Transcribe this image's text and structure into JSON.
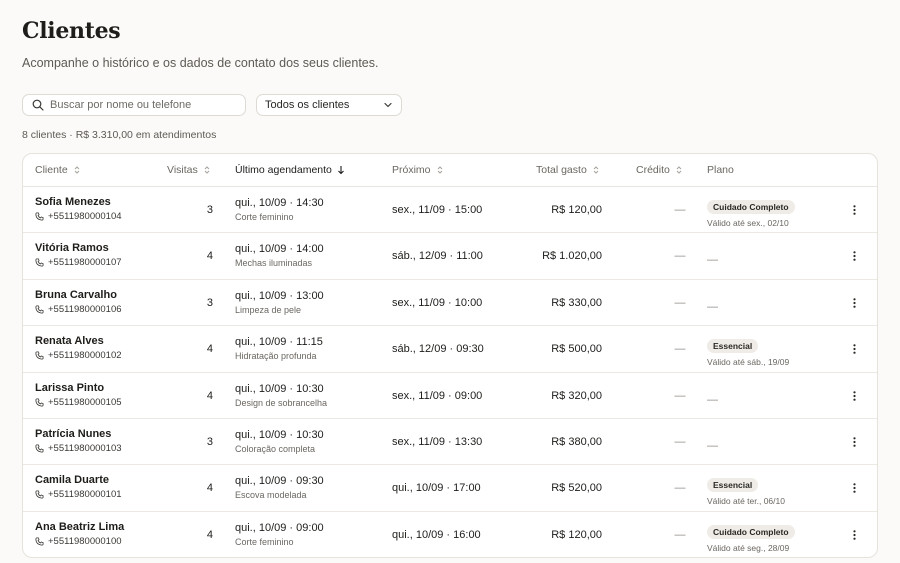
{
  "header": {
    "title": "Clientes",
    "subtitle": "Acompanhe o histórico e os dados de contato dos seus clientes."
  },
  "search": {
    "placeholder": "Buscar por nome ou telefone",
    "value": ""
  },
  "filter": {
    "selected": "Todos os clientes"
  },
  "summary": "8 clientes · R$ 3.310,00 em atendimentos",
  "columns": {
    "client": "Cliente",
    "visits": "Visitas",
    "last": "Último agendamento",
    "next": "Próximo",
    "total": "Total gasto",
    "credit": "Crédito",
    "plan": "Plano"
  },
  "rows": [
    {
      "name": "Sofia Menezes",
      "phone": "+5511980000104",
      "visits": "3",
      "last": "qui., 10/09 · 14:30",
      "service": "Corte feminino",
      "next": "sex., 11/09 · 15:00",
      "total": "R$ 120,00",
      "credit": "—",
      "plan": "Cuidado Completo",
      "valid": "Válido até sex., 02/10"
    },
    {
      "name": "Vitória Ramos",
      "phone": "+5511980000107",
      "visits": "4",
      "last": "qui., 10/09 · 14:00",
      "service": "Mechas iluminadas",
      "next": "sáb., 12/09 · 11:00",
      "total": "R$ 1.020,00",
      "credit": "—",
      "plan": "",
      "valid": "",
      "plan_empty": "—"
    },
    {
      "name": "Bruna Carvalho",
      "phone": "+5511980000106",
      "visits": "3",
      "last": "qui., 10/09 · 13:00",
      "service": "Limpeza de pele",
      "next": "sex., 11/09 · 10:00",
      "total": "R$ 330,00",
      "credit": "—",
      "plan": "",
      "valid": "",
      "plan_empty": "—"
    },
    {
      "name": "Renata Alves",
      "phone": "+5511980000102",
      "visits": "4",
      "last": "qui., 10/09 · 11:15",
      "service": "Hidratação profunda",
      "next": "sáb., 12/09 · 09:30",
      "total": "R$ 500,00",
      "credit": "—",
      "plan": "Essencial",
      "valid": "Válido até sáb., 19/09"
    },
    {
      "name": "Larissa Pinto",
      "phone": "+5511980000105",
      "visits": "4",
      "last": "qui., 10/09 · 10:30",
      "service": "Design de sobrancelha",
      "next": "sex., 11/09 · 09:00",
      "total": "R$ 320,00",
      "credit": "—",
      "plan": "",
      "valid": "",
      "plan_empty": "—"
    },
    {
      "name": "Patrícia Nunes",
      "phone": "+5511980000103",
      "visits": "3",
      "last": "qui., 10/09 · 10:30",
      "service": "Coloração completa",
      "next": "sex., 11/09 · 13:30",
      "total": "R$ 380,00",
      "credit": "—",
      "plan": "",
      "valid": "",
      "plan_empty": "—"
    },
    {
      "name": "Camila Duarte",
      "phone": "+5511980000101",
      "visits": "4",
      "last": "qui., 10/09 · 09:30",
      "service": "Escova modelada",
      "next": "qui., 10/09 · 17:00",
      "total": "R$ 520,00",
      "credit": "—",
      "plan": "Essencial",
      "valid": "Válido até ter., 06/10"
    },
    {
      "name": "Ana Beatriz Lima",
      "phone": "+5511980000100",
      "visits": "4",
      "last": "qui., 10/09 · 09:00",
      "service": "Corte feminino",
      "next": "qui., 10/09 · 16:00",
      "total": "R$ 120,00",
      "credit": "—",
      "plan": "Cuidado Completo",
      "valid": "Válido até seg., 28/09"
    }
  ],
  "icons": {
    "search": "search-icon",
    "chevron": "chevron-down-icon",
    "sort": "sort-icon",
    "sort_active": "arrow-down-icon",
    "phone": "phone-icon",
    "more": "more-vertical-icon"
  }
}
